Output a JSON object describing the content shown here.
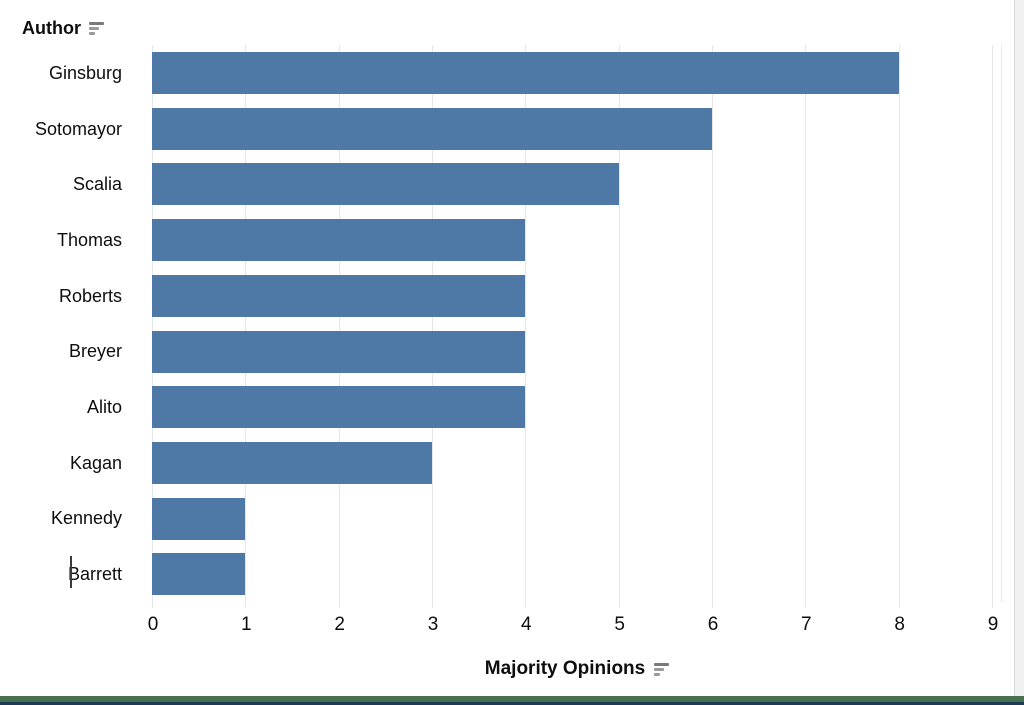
{
  "header": {
    "label": "Author",
    "sort_icon": "sort-descending-icon"
  },
  "x_axis": {
    "label": "Majority Opinions",
    "sort_icon": "sort-descending-icon",
    "ticks": [
      0,
      1,
      2,
      3,
      4,
      5,
      6,
      7,
      8,
      9
    ]
  },
  "chart_data": {
    "type": "bar",
    "orientation": "horizontal",
    "title": "",
    "categories": [
      "Ginsburg",
      "Sotomayor",
      "Scalia",
      "Thomas",
      "Roberts",
      "Breyer",
      "Alito",
      "Kagan",
      "Kennedy",
      "Barrett"
    ],
    "values": [
      8,
      6,
      5,
      4,
      4,
      4,
      4,
      3,
      1,
      1
    ],
    "xlabel": "Majority Opinions",
    "ylabel": "Author",
    "xlim": [
      0,
      9
    ],
    "grid": true,
    "legend": false,
    "bar_color": "#4e79a7"
  },
  "colors": {
    "bar": "#4e79a7",
    "gridline": "#e6e6e6",
    "footer_green": "#467050",
    "footer_dark": "#1e3a54",
    "scrollbar_track": "#f1f1f1"
  }
}
